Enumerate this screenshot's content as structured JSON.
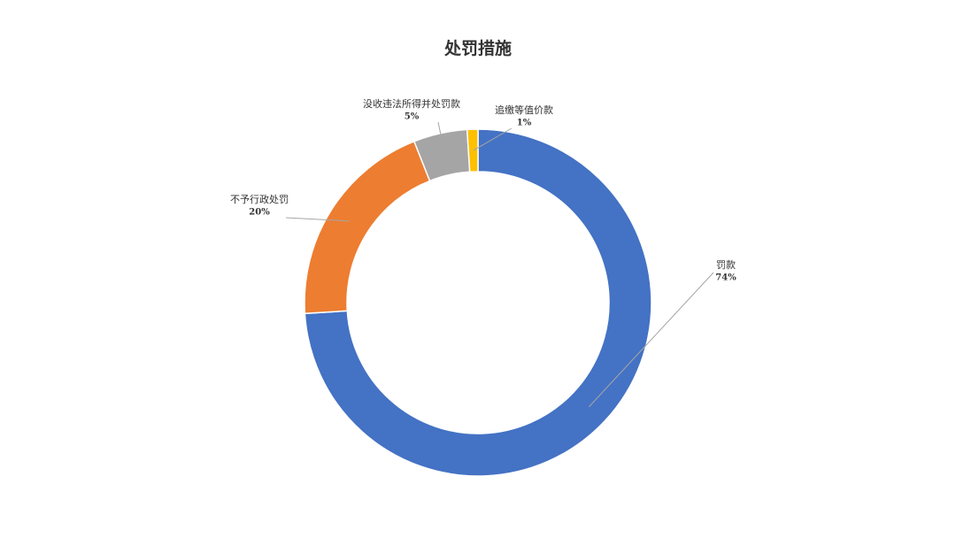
{
  "chart_data": {
    "type": "donut",
    "title": "处罚措施",
    "categories": [
      "罚款",
      "不予行政处罚",
      "没收违法所得并处罚款",
      "追缴等值价款"
    ],
    "values": [
      74,
      20,
      5,
      1
    ],
    "value_labels": [
      "74%",
      "20%",
      "5%",
      "1%"
    ],
    "colors": [
      "#4472c4",
      "#ed7d31",
      "#a5a5a5",
      "#ffc000"
    ]
  }
}
